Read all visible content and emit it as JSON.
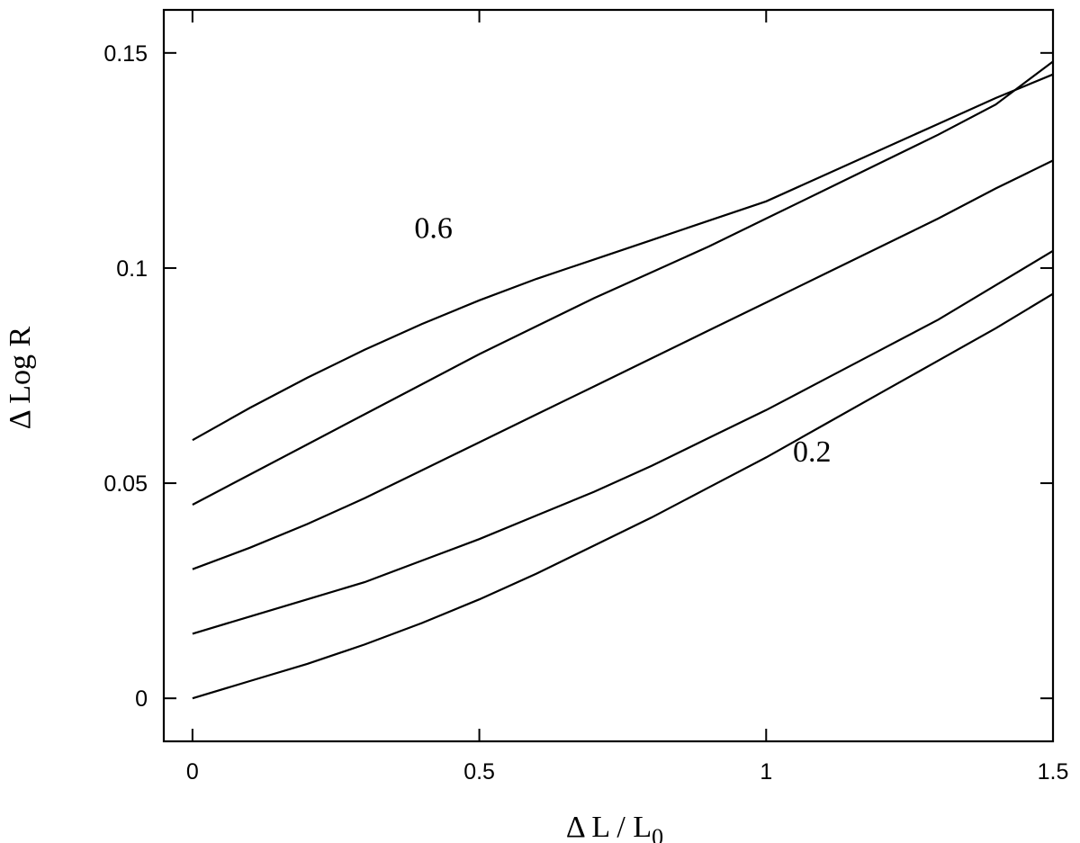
{
  "chart_data": {
    "type": "line",
    "xlabel": "Δ  L / L",
    "xlabel_sub": "0",
    "ylabel": "Δ Log R",
    "xlim": [
      -0.05,
      1.5
    ],
    "ylim": [
      -0.01,
      0.16
    ],
    "x_ticks": [
      {
        "value": 0,
        "label": "0"
      },
      {
        "value": 0.5,
        "label": "0.5"
      },
      {
        "value": 1,
        "label": "1"
      },
      {
        "value": 1.5,
        "label": "1.5"
      }
    ],
    "y_ticks": [
      {
        "value": 0,
        "label": "0"
      },
      {
        "value": 0.05,
        "label": "0.05"
      },
      {
        "value": 0.1,
        "label": "0.1"
      },
      {
        "value": 0.15,
        "label": "0.15"
      }
    ],
    "grid": false,
    "series": [
      {
        "x": [
          0,
          0.1,
          0.2,
          0.3,
          0.4,
          0.5,
          0.6,
          0.7,
          0.8,
          0.9,
          1.0,
          1.1,
          1.2,
          1.3,
          1.4,
          1.5
        ],
        "y": [
          0.06,
          0.0675,
          0.0745,
          0.081,
          0.087,
          0.0925,
          0.0975,
          0.102,
          0.1065,
          0.111,
          0.1155,
          0.1215,
          0.1275,
          0.1335,
          0.1395,
          0.145
        ]
      },
      {
        "x": [
          0,
          0.1,
          0.2,
          0.3,
          0.4,
          0.5,
          0.6,
          0.7,
          0.8,
          0.9,
          1.0,
          1.1,
          1.2,
          1.3,
          1.4,
          1.5
        ],
        "y": [
          0.045,
          0.052,
          0.059,
          0.066,
          0.073,
          0.08,
          0.0865,
          0.093,
          0.099,
          0.105,
          0.1115,
          0.118,
          0.1245,
          0.131,
          0.138,
          0.148
        ]
      },
      {
        "x": [
          0,
          0.1,
          0.2,
          0.3,
          0.4,
          0.5,
          0.6,
          0.7,
          0.8,
          0.9,
          1.0,
          1.1,
          1.2,
          1.3,
          1.4,
          1.5
        ],
        "y": [
          0.03,
          0.035,
          0.0405,
          0.0465,
          0.053,
          0.0595,
          0.066,
          0.0725,
          0.079,
          0.0855,
          0.092,
          0.0985,
          0.105,
          0.1115,
          0.1185,
          0.125
        ]
      },
      {
        "x": [
          0,
          0.1,
          0.2,
          0.3,
          0.4,
          0.5,
          0.6,
          0.7,
          0.8,
          0.9,
          1.0,
          1.1,
          1.2,
          1.3,
          1.4,
          1.5
        ],
        "y": [
          0.015,
          0.019,
          0.023,
          0.027,
          0.032,
          0.037,
          0.0425,
          0.048,
          0.054,
          0.0605,
          0.067,
          0.074,
          0.081,
          0.088,
          0.096,
          0.104
        ]
      },
      {
        "x": [
          0,
          0.1,
          0.2,
          0.3,
          0.4,
          0.5,
          0.6,
          0.7,
          0.8,
          0.9,
          1.0,
          1.1,
          1.2,
          1.3,
          1.4,
          1.5
        ],
        "y": [
          0.0,
          0.004,
          0.008,
          0.0125,
          0.0175,
          0.023,
          0.029,
          0.0355,
          0.042,
          0.049,
          0.056,
          0.0635,
          0.071,
          0.0785,
          0.086,
          0.094
        ]
      }
    ],
    "annotations": [
      {
        "text": "0.6",
        "x": 0.42,
        "y": 0.107
      },
      {
        "text": "0.2",
        "x": 1.08,
        "y": 0.055
      }
    ]
  }
}
